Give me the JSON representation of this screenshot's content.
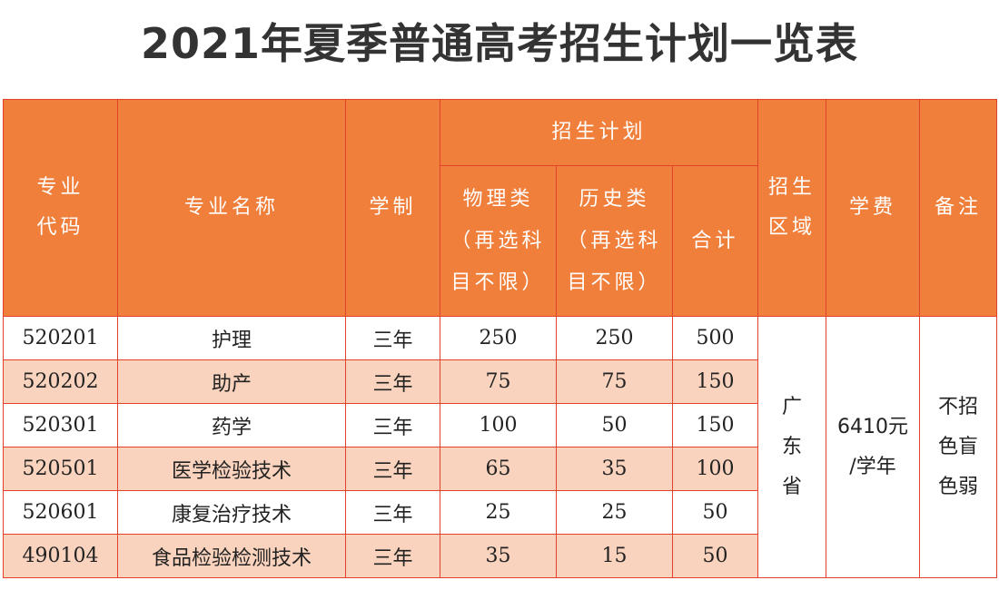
{
  "title": "2021年夏季普通高考招生计划一览表",
  "headers": {
    "code_line1": "专业",
    "code_line2": "代码",
    "name": "专业名称",
    "duration": "学制",
    "plan_group": "招生计划",
    "physics_line1": "物理类",
    "physics_line2": "（再选科",
    "physics_line3": "目不限）",
    "history_line1": "历史类",
    "history_line2": "（再选科",
    "history_line3": "目不限）",
    "total": "合计",
    "region_line1": "招生",
    "region_line2": "区域",
    "tuition": "学费",
    "remarks": "备注"
  },
  "rows": [
    {
      "code": "520201",
      "name": "护理",
      "duration": "三年",
      "physics": "250",
      "history": "250",
      "total": "500"
    },
    {
      "code": "520202",
      "name": "助产",
      "duration": "三年",
      "physics": "75",
      "history": "75",
      "total": "150"
    },
    {
      "code": "520301",
      "name": "药学",
      "duration": "三年",
      "physics": "100",
      "history": "50",
      "total": "150"
    },
    {
      "code": "520501",
      "name": "医学检验技术",
      "duration": "三年",
      "physics": "65",
      "history": "35",
      "total": "100"
    },
    {
      "code": "520601",
      "name": "康复治疗技术",
      "duration": "三年",
      "physics": "25",
      "history": "25",
      "total": "50"
    },
    {
      "code": "490104",
      "name": "食品检验检测技术",
      "duration": "三年",
      "physics": "35",
      "history": "15",
      "total": "50"
    }
  ],
  "region": {
    "line1": "广",
    "line2": "东",
    "line3": "省"
  },
  "tuition": {
    "line1": "6410元",
    "line2": "/学年"
  },
  "remarks": {
    "line1": "不招",
    "line2": "色盲",
    "line3": "色弱"
  },
  "colors": {
    "header_bg": "#ef7f3b",
    "border": "#e2412c",
    "alt_row": "#f9d3bd",
    "title": "#333333"
  }
}
